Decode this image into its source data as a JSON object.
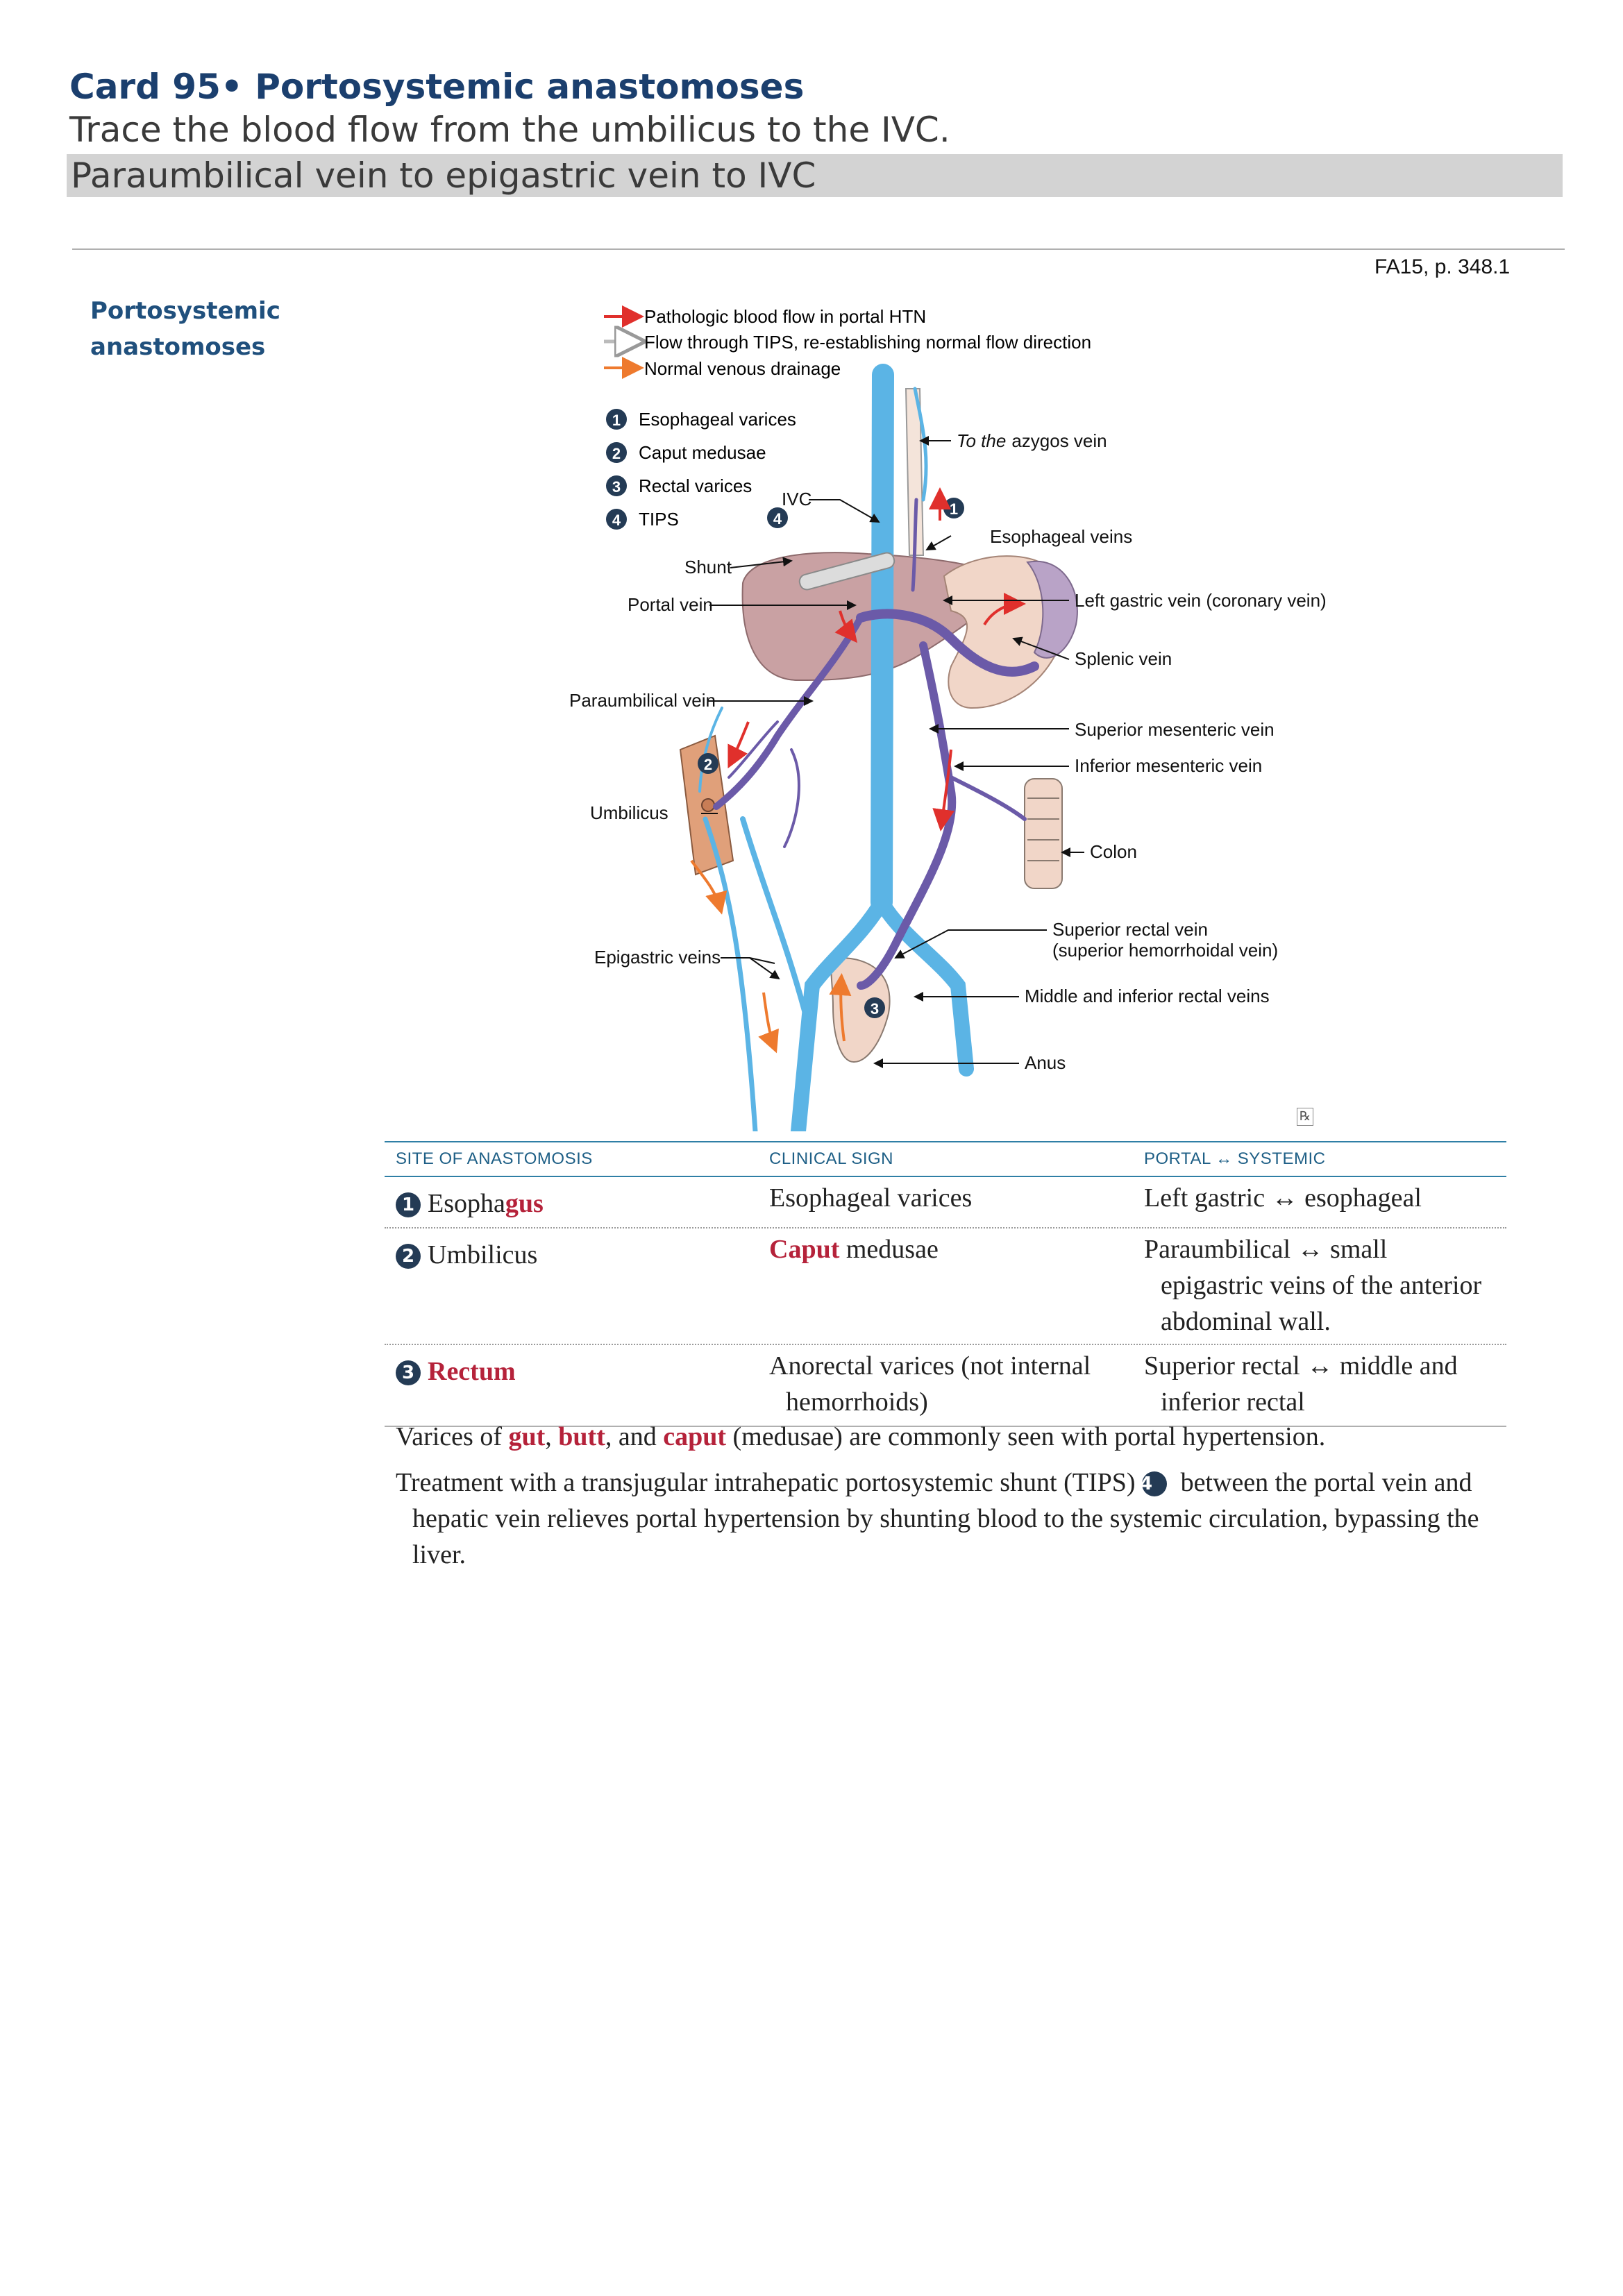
{
  "card": {
    "title": "Card 95• Portosystemic anastomoses",
    "question": "Trace the blood flow from the umbilicus to the IVC.",
    "answer": "Paraumbilical vein to epigastric vein to IVC"
  },
  "page_ref": "FA15, p. 348.1",
  "section": {
    "title_line1": "Portosystemic",
    "title_line2": "anastomoses"
  },
  "diagram": {
    "legend": {
      "pathologic": "Pathologic blood flow in portal HTN",
      "tips_flow": "Flow through TIPS, re-establishing normal flow direction",
      "normal": "Normal venous drainage"
    },
    "key": {
      "n1": "1",
      "n2": "2",
      "n3": "3",
      "n4": "4",
      "item1": "Esophageal varices",
      "item2": "Caput medusae",
      "item3": "Rectal varices",
      "item4": "TIPS"
    },
    "labels": {
      "azygos_prefix": "To the",
      "azygos_suffix": "azygos vein",
      "ivc": "IVC",
      "esophageal_veins": "Esophageal veins",
      "shunt": "Shunt",
      "portal_vein": "Portal vein",
      "left_gastric": "Left gastric vein (coronary vein)",
      "splenic": "Splenic vein",
      "paraumbilical": "Paraumbilical vein",
      "sup_mesenteric": "Superior mesenteric vein",
      "inf_mesenteric": "Inferior mesenteric vein",
      "umbilicus": "Umbilicus",
      "colon": "Colon",
      "sup_rectal_1": "Superior rectal vein",
      "sup_rectal_2": "(superior hemorrhoidal vein)",
      "epigastric": "Epigastric veins",
      "mid_inf_rectal": "Middle and inferior rectal veins",
      "anus": "Anus"
    },
    "colors": {
      "systemic": "#5bb4e5",
      "portal": "#6b5aa8",
      "pathologic_arrow": "#e0302c",
      "normal_arrow": "#ee7a2e",
      "liver": "#c9a1a3",
      "stomach": "#f1d6c8"
    }
  },
  "rx_mark": "℞",
  "table": {
    "headers": {
      "site": "SITE OF ANASTOMOSIS",
      "sign": "CLINICAL SIGN",
      "portal": "PORTAL ↔ SYSTEMIC"
    },
    "rows": [
      {
        "num": "1",
        "site_a": "Esopha",
        "site_b": "gus",
        "sign_a": "Esophageal varices",
        "sign_b": "",
        "portal_line1": "Left gastric ↔ esophageal",
        "portal_line2": "",
        "portal_line3": ""
      },
      {
        "num": "2",
        "site_a": "Umbilicus",
        "site_b": "",
        "sign_a": "Caput",
        "sign_b": " medusae",
        "portal_line1": "Paraumbilical ↔ small",
        "portal_line2": "epigastric veins of the anterior",
        "portal_line3": "abdominal wall."
      },
      {
        "num": "3",
        "site_a": "",
        "site_b": "Rectum",
        "sign_a": "Anorectal varices (not internal",
        "sign_b": "hemorrhoids)",
        "portal_line1": "Superior rectal ↔ middle and",
        "portal_line2": "inferior rectal",
        "portal_line3": ""
      }
    ]
  },
  "notes": {
    "p1_a": "Varices of ",
    "p1_gut": "gut",
    "p1_b": ", ",
    "p1_butt": "butt",
    "p1_c": ", and ",
    "p1_caput": "caput",
    "p1_d": " (medusae) are commonly seen with portal hypertension.",
    "p2_a": "Treatment with a transjugular intrahepatic portosystemic shunt (TIPS) ",
    "p2_num": "4",
    "p2_b": " between the portal vein and hepatic vein relieves portal hypertension by shunting blood to the systemic circulation, bypassing the liver."
  }
}
